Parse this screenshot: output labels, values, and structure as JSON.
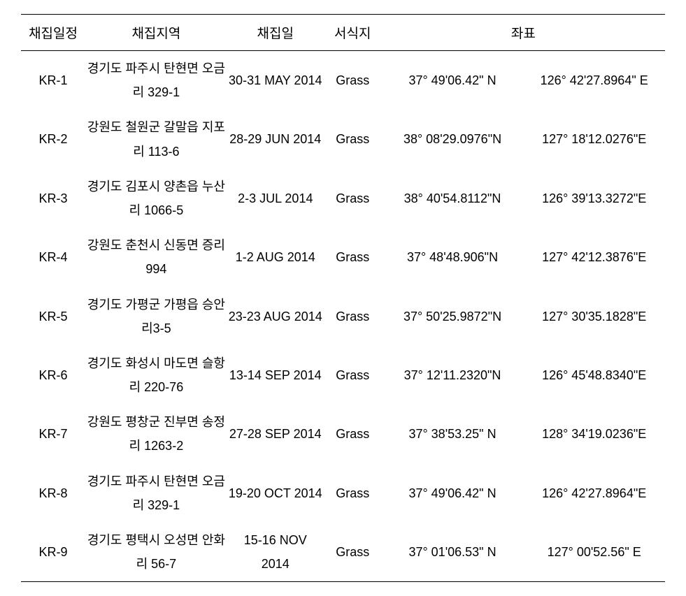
{
  "table": {
    "headers": {
      "code": "채집일정",
      "location": "채집지역",
      "date": "채집일",
      "habitat": "서식지",
      "coordinates": "좌표"
    },
    "column_widths": [
      "10%",
      "22%",
      "15%",
      "9%",
      "22%",
      "22%"
    ],
    "font_size_header": 19,
    "font_size_body": 18,
    "line_height": 1.9,
    "border_color": "#000000",
    "background_color": "#ffffff",
    "text_color": "#000000",
    "rows": [
      {
        "code": "KR-1",
        "location": "경기도 파주시 탄현면 오금리 329-1",
        "date": "30-31 MAY 2014",
        "habitat": "Grass",
        "lat": "37° 49'06.42\" N",
        "lon": "126° 42'27.8964\" E"
      },
      {
        "code": "KR-2",
        "location": "강원도 철원군 갈말읍 지포리 113-6",
        "date": "28-29 JUN 2014",
        "habitat": "Grass",
        "lat": "38° 08'29.0976\"N",
        "lon": "127° 18'12.0276\"E"
      },
      {
        "code": "KR-3",
        "location": "경기도 김포시 양촌읍 누산리 1066-5",
        "date": "2-3 JUL 2014",
        "habitat": "Grass",
        "lat": "38° 40'54.8112\"N",
        "lon": "126° 39'13.3272\"E"
      },
      {
        "code": "KR-4",
        "location": "강원도 춘천시 신동면 증리 994",
        "date": "1-2 AUG 2014",
        "habitat": "Grass",
        "lat": "37° 48'48.906\"N",
        "lon": "127° 42'12.3876\"E"
      },
      {
        "code": "KR-5",
        "location": "경기도 가평군 가평읍 승안리3-5",
        "date": "23-23 AUG 2014",
        "habitat": "Grass",
        "lat": "37° 50'25.9872\"N",
        "lon": "127° 30'35.1828\"E"
      },
      {
        "code": "KR-6",
        "location": "경기도 화성시 마도면 슬항리 220-76",
        "date": "13-14 SEP 2014",
        "habitat": "Grass",
        "lat": "37° 12'11.2320\"N",
        "lon": "126° 45'48.8340\"E"
      },
      {
        "code": "KR-7",
        "location": "강원도 평창군 진부면 송정리 1263-2",
        "date": "27-28 SEP 2014",
        "habitat": "Grass",
        "lat": "37° 38'53.25\" N",
        "lon": "128° 34'19.0236\"E"
      },
      {
        "code": "KR-8",
        "location": "경기도 파주시 탄현면 오금리 329-1",
        "date": "19-20 OCT 2014",
        "habitat": "Grass",
        "lat": "37° 49'06.42\" N",
        "lon": "126° 42'27.8964\"E"
      },
      {
        "code": "KR-9",
        "location": "경기도 평택시 오성면 안화리 56-7",
        "date": "15-16 NOV 2014",
        "habitat": "Grass",
        "lat": "37° 01'06.53\" N",
        "lon": "127° 00'52.56\" E"
      }
    ]
  }
}
